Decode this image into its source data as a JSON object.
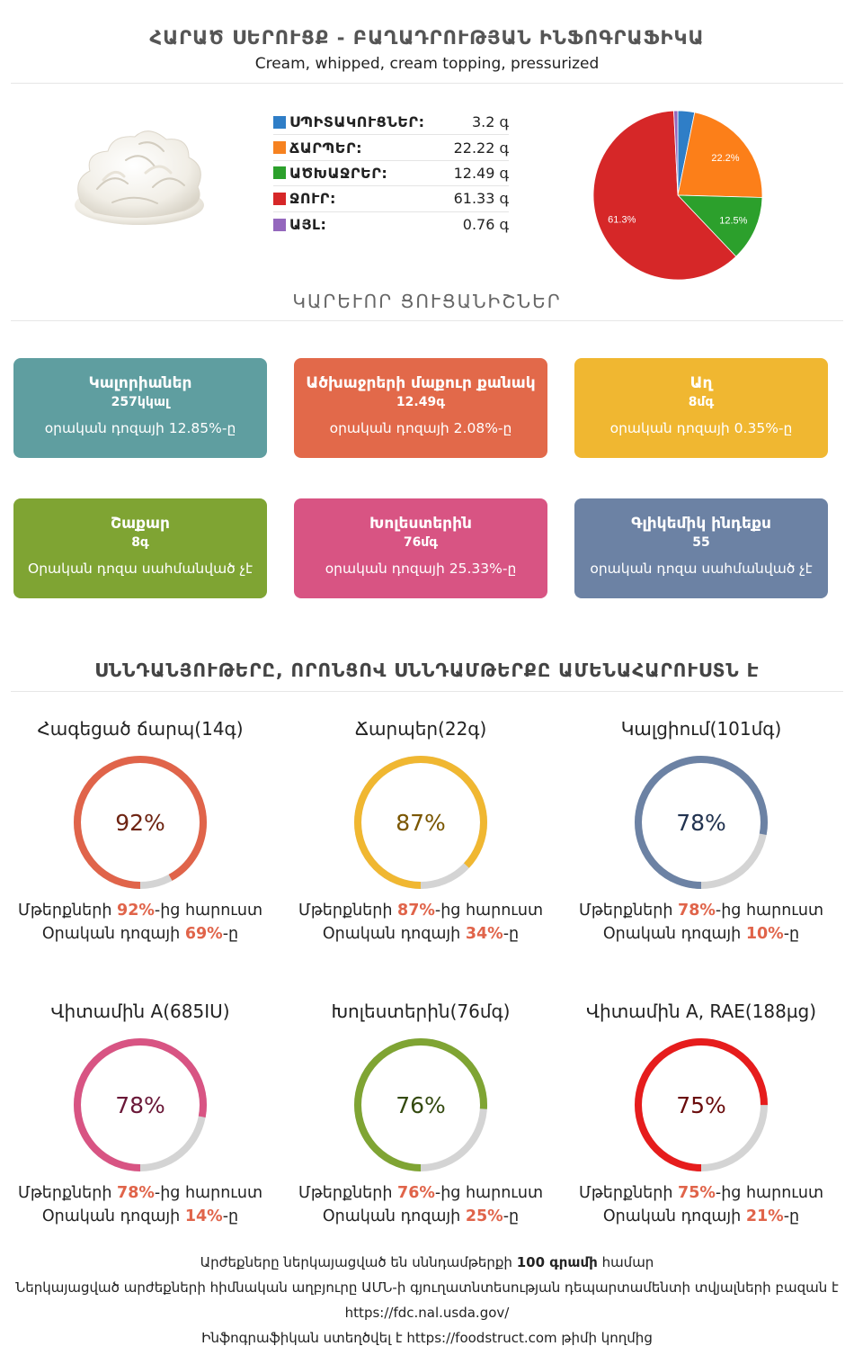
{
  "header": {
    "title": "ՀԱՐԱԾ ՍԵՐՈՒՑՔ - ԲԱՂԱԴՐՈՒԹՅԱՆ ԻՆՖՈԳՐԱՖԻԿԱ",
    "subtitle": "Cream, whipped, cream topping, pressurized"
  },
  "macros": [
    {
      "label": "ՍՊԻՏԱԿՈՒՑՆԵՐ:",
      "value": "3.2 գ",
      "color": "#2f7ec7"
    },
    {
      "label": "ՃԱՐՊԵՐ:",
      "value": "22.22 գ",
      "color": "#f68220"
    },
    {
      "label": "ԱԾԽԱՋՐԵՐ:",
      "value": "12.49 գ",
      "color": "#2ca02c"
    },
    {
      "label": "ՋՈՒՐ:",
      "value": "61.33 գ",
      "color": "#d62728"
    },
    {
      "label": "ԱՅԼ:",
      "value": "0.76 գ",
      "color": "#9467bd"
    }
  ],
  "chart_data": {
    "type": "pie",
    "slices": [
      {
        "name": "ՍՊԻՏԱԿՈՒՑՆԵՐ",
        "value": 3.2,
        "color": "#2f7ec7",
        "label": ""
      },
      {
        "name": "ՃԱՐՊԵՐ",
        "value": 22.22,
        "color": "#fc7f19",
        "label": "22.2%"
      },
      {
        "name": "ԱԾԽԱՋՐԵՐ",
        "value": 12.49,
        "color": "#2ca02c",
        "label": "12.5%"
      },
      {
        "name": "ՋՈՒՐ",
        "value": 61.33,
        "color": "#d62728",
        "label": "61.3%"
      },
      {
        "name": "ԱՅԼ",
        "value": 0.76,
        "color": "#9467bd",
        "label": ""
      }
    ]
  },
  "key_title": "ԿԱՐԵՒՈՐ ՑՈՒՑԱՆԻՇՆԵՐ",
  "cards": [
    {
      "name": "Կալորիաներ",
      "value": "257կկալ",
      "note": "օրական դոզայի 12.85%-ը",
      "color": "#5f9ea0"
    },
    {
      "name": "Ածխաջրերի մաքուր քանակ",
      "value": "12.49գ",
      "note": "օրական դոզայի 2.08%-ը",
      "color": "#e2694a"
    },
    {
      "name": "Աղ",
      "value": "8մգ",
      "note": "օրական դոզայի 0.35%-ը",
      "color": "#f0b731"
    },
    {
      "name": "Շաքար",
      "value": "8գ",
      "note": "Օրական դոզա սահմանված չէ",
      "color": "#7fa433"
    },
    {
      "name": "Խոլեստերին",
      "value": "76մգ",
      "note": "օրական դոզայի 25.33%-ը",
      "color": "#d85483"
    },
    {
      "name": "Գլիկեմիկ ինդեքս",
      "value": "55",
      "note": "օրական դոզա սահմանված չէ",
      "color": "#6c82a4"
    }
  ],
  "nutrients_title": "ՍՆՆԴԱՆՅՈՒԹԵՐԸ, ՈՐՈՆՑՈՎ ՍՆՆԴԱՄԹԵՐՔԸ ԱՄԵՆԱՀԱՐՈՒՍՏՆ Է",
  "rings": [
    {
      "title": "Հագեցած ճարպ(14գ)",
      "percent": 92,
      "pct_text": "92%",
      "daily": "69%",
      "color": "#e0644a",
      "text_color": "#6e2412"
    },
    {
      "title": "Ճարպեր(22գ)",
      "percent": 87,
      "pct_text": "87%",
      "daily": "34%",
      "color": "#f0b731",
      "text_color": "#7a5600"
    },
    {
      "title": "Կալցիում(101մգ)",
      "percent": 78,
      "pct_text": "78%",
      "daily": "10%",
      "color": "#6c82a4",
      "text_color": "#223350"
    },
    {
      "title": "Վիտամին A(685IU)",
      "percent": 78,
      "pct_text": "78%",
      "daily": "14%",
      "color": "#d85483",
      "text_color": "#6a1838"
    },
    {
      "title": "Խոլեստերին(76մգ)",
      "percent": 76,
      "pct_text": "76%",
      "daily": "25%",
      "color": "#7fa433",
      "text_color": "#344a10"
    },
    {
      "title": "Վիտամին A, RAE(188µg)",
      "percent": 75,
      "pct_text": "75%",
      "daily": "21%",
      "color": "#e61c1c",
      "text_color": "#6a0c0c"
    }
  ],
  "ring_text": {
    "line1_prefix": "Մթերքների ",
    "line1_suffix": "-ից հարուստ",
    "line2_prefix": "Օրական դոզայի ",
    "line2_suffix": "-ը"
  },
  "footer": {
    "line1_prefix": "Արժեքները ներկայացված են սննդամթերքի ",
    "line1_bold": "100 գրամի",
    "line1_suffix": " համար",
    "line2": "Ներկայացված արժեքների հիմնական աղբյուրը ԱՄՆ-ի գյուղատնտեսության դեպարտամենտի տվյալների բազան է",
    "line3": "https://fdc.nal.usda.gov/",
    "line4_prefix": "Ինֆոգրաֆիկան ստեղծվել է ",
    "line4_link": "https://foodstruct.com",
    "line4_suffix": " թիմի կողմից"
  }
}
